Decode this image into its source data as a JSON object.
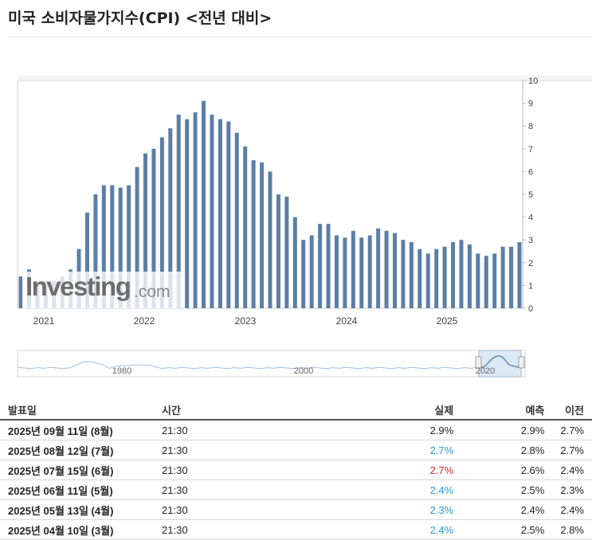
{
  "page": {
    "title": "미국 소비자물가지수(CPI) <전년 대비>"
  },
  "colors": {
    "bar": "#5b7ea7",
    "actual_better": "#2b9ad6",
    "actual_worse": "#d9262c",
    "navigator_line": "#9ec0dd"
  },
  "watermark": {
    "brand": "Investing",
    "suffix": ".com"
  },
  "chart_data": {
    "type": "bar",
    "ylim": [
      0,
      10
    ],
    "yticks": [
      "0",
      "1",
      "2",
      "3",
      "4",
      "5",
      "6",
      "7",
      "8",
      "9",
      "10"
    ],
    "xticks": [
      "2021",
      "2022",
      "2023",
      "2024",
      "2025"
    ],
    "values": [
      1.4,
      1.7,
      1.2,
      1.2,
      1.2,
      1.4,
      1.7,
      2.6,
      4.2,
      5.0,
      5.4,
      5.4,
      5.3,
      5.4,
      6.2,
      6.8,
      7.0,
      7.5,
      7.9,
      8.5,
      8.3,
      8.6,
      9.1,
      8.5,
      8.3,
      8.2,
      7.7,
      7.1,
      6.5,
      6.4,
      6.0,
      5.0,
      4.9,
      4.0,
      3.0,
      3.2,
      3.7,
      3.7,
      3.2,
      3.1,
      3.4,
      3.1,
      3.2,
      3.5,
      3.4,
      3.3,
      3.0,
      2.9,
      2.6,
      2.4,
      2.6,
      2.7,
      2.9,
      3.0,
      2.8,
      2.4,
      2.3,
      2.4,
      2.7,
      2.7,
      2.9
    ],
    "navigator": {
      "labels": [
        "1980",
        "2000",
        "2020"
      ]
    }
  },
  "table": {
    "headers": [
      "발표일",
      "시간",
      "실제",
      "예측",
      "이전"
    ],
    "rows": [
      {
        "date": "2025년 09월 11일 (8월)",
        "time": "21:30",
        "actual": "2.9%",
        "forecast": "2.9%",
        "previous": "2.7%",
        "status": "neutral"
      },
      {
        "date": "2025년 08월 12일 (7월)",
        "time": "21:30",
        "actual": "2.7%",
        "forecast": "2.8%",
        "previous": "2.7%",
        "status": "better"
      },
      {
        "date": "2025년 07월 15일 (6월)",
        "time": "21:30",
        "actual": "2.7%",
        "forecast": "2.6%",
        "previous": "2.4%",
        "status": "worse"
      },
      {
        "date": "2025년 06월 11일 (5월)",
        "time": "21:30",
        "actual": "2.4%",
        "forecast": "2.5%",
        "previous": "2.3%",
        "status": "better"
      },
      {
        "date": "2025년 05월 13일 (4월)",
        "time": "21:30",
        "actual": "2.3%",
        "forecast": "2.4%",
        "previous": "2.4%",
        "status": "better"
      },
      {
        "date": "2025년 04월 10일 (3월)",
        "time": "21:30",
        "actual": "2.4%",
        "forecast": "2.5%",
        "previous": "2.8%",
        "status": "better"
      }
    ]
  }
}
